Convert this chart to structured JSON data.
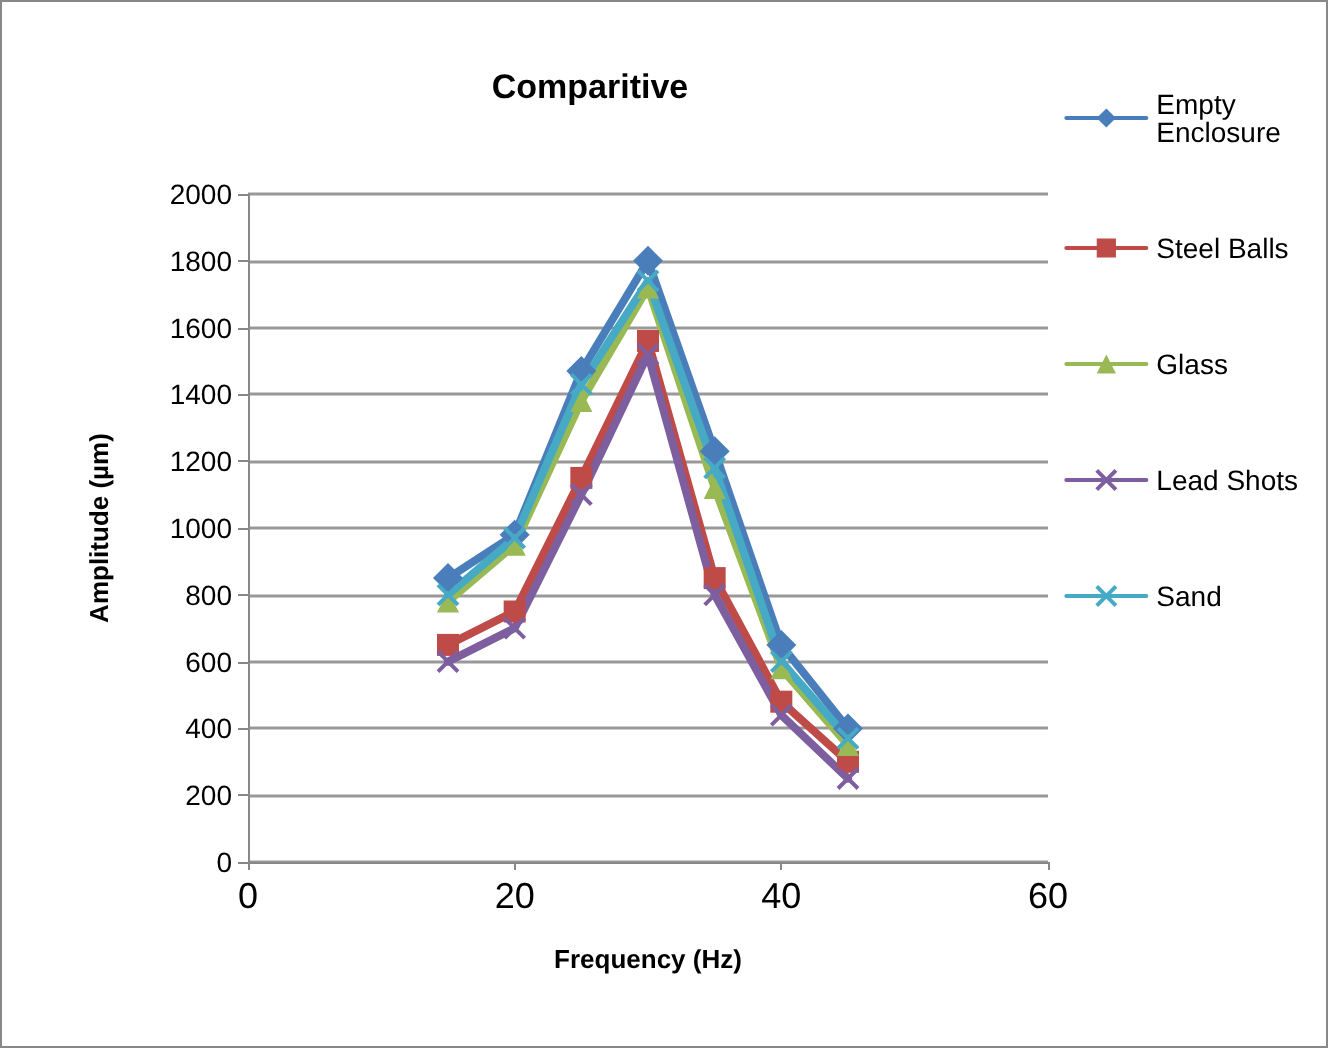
{
  "chart_data": {
    "type": "line",
    "title": "Comparitive",
    "xlabel": "Frequency (Hz)",
    "ylabel": "Amplitude (µm)",
    "x": [
      15,
      20,
      25,
      30,
      35,
      40,
      45
    ],
    "xlim": [
      0,
      60
    ],
    "xticks": [
      0,
      20,
      40,
      60
    ],
    "ylim": [
      0,
      2000
    ],
    "yticks": [
      0,
      200,
      400,
      600,
      800,
      1000,
      1200,
      1400,
      1600,
      1800,
      2000
    ],
    "grid": "y",
    "legend": "right",
    "line_style": "solid",
    "series": [
      {
        "name": "Empty Enclosure",
        "color": "#4a7ebb",
        "marker": "diamond",
        "values": [
          850,
          980,
          1470,
          1800,
          1230,
          650,
          400
        ]
      },
      {
        "name": "Steel Balls",
        "color": "#be4b48",
        "marker": "square",
        "values": [
          650,
          750,
          1150,
          1560,
          850,
          480,
          300
        ]
      },
      {
        "name": "Glass",
        "color": "#98b954",
        "marker": "triangle",
        "values": [
          780,
          950,
          1380,
          1720,
          1120,
          580,
          350
        ]
      },
      {
        "name": "Lead Shots",
        "color": "#7d5fa0",
        "marker": "cross",
        "values": [
          600,
          700,
          1100,
          1520,
          800,
          440,
          250
        ]
      },
      {
        "name": "Sand",
        "color": "#46aac5",
        "marker": "cross",
        "values": [
          800,
          970,
          1430,
          1740,
          1180,
          600,
          370
        ]
      }
    ]
  }
}
